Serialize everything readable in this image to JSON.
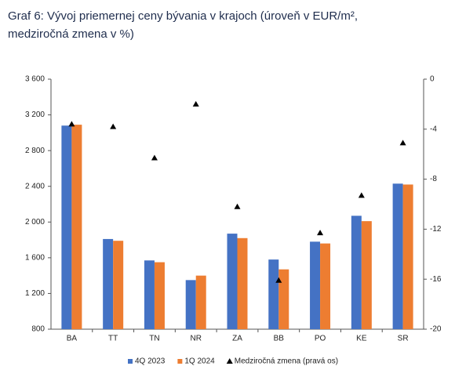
{
  "chart_data": {
    "type": "bar",
    "title": [
      "Graf 6: Vývoj priemernej ceny bývania v krajoch (úroveň v EUR/m², ",
      "medziročná zmena v %)"
    ],
    "categories": [
      "BA",
      "TT",
      "TN",
      "NR",
      "ZA",
      "BB",
      "PO",
      "KE",
      "SR"
    ],
    "series": [
      {
        "name": "4Q 2023",
        "color": "#4472c4",
        "values": [
          3080,
          1810,
          1570,
          1350,
          1870,
          1580,
          1780,
          2070,
          2430
        ]
      },
      {
        "name": "1Q 2024",
        "color": "#ed7d31",
        "values": [
          3090,
          1790,
          1550,
          1400,
          1820,
          1470,
          1760,
          2010,
          2420
        ]
      },
      {
        "name": "Medziročná zmena (pravá os)",
        "color": "#000000",
        "axis": "y2",
        "marker": "triangle",
        "values": [
          -3.6,
          -3.8,
          -6.3,
          -2.0,
          -10.2,
          -16.1,
          -12.3,
          -9.3,
          -5.1
        ]
      }
    ],
    "ylim": [
      800,
      3600
    ],
    "yticks": [
      800,
      {
        "value": 1200,
        "label": "1 200"
      },
      {
        "value": 1600,
        "label": "1 600"
      },
      {
        "value": 2000,
        "label": "2 000"
      },
      {
        "value": 2400,
        "label": "2 400"
      },
      {
        "value": 2800,
        "label": "2 800"
      },
      {
        "value": 3200,
        "label": "3 200"
      },
      {
        "value": 3600,
        "label": "3 600"
      }
    ],
    "y2lim": [
      -20,
      0
    ],
    "y2ticks": [
      -20,
      -16,
      -12,
      -8,
      -4,
      0
    ],
    "legend": "bottom"
  }
}
